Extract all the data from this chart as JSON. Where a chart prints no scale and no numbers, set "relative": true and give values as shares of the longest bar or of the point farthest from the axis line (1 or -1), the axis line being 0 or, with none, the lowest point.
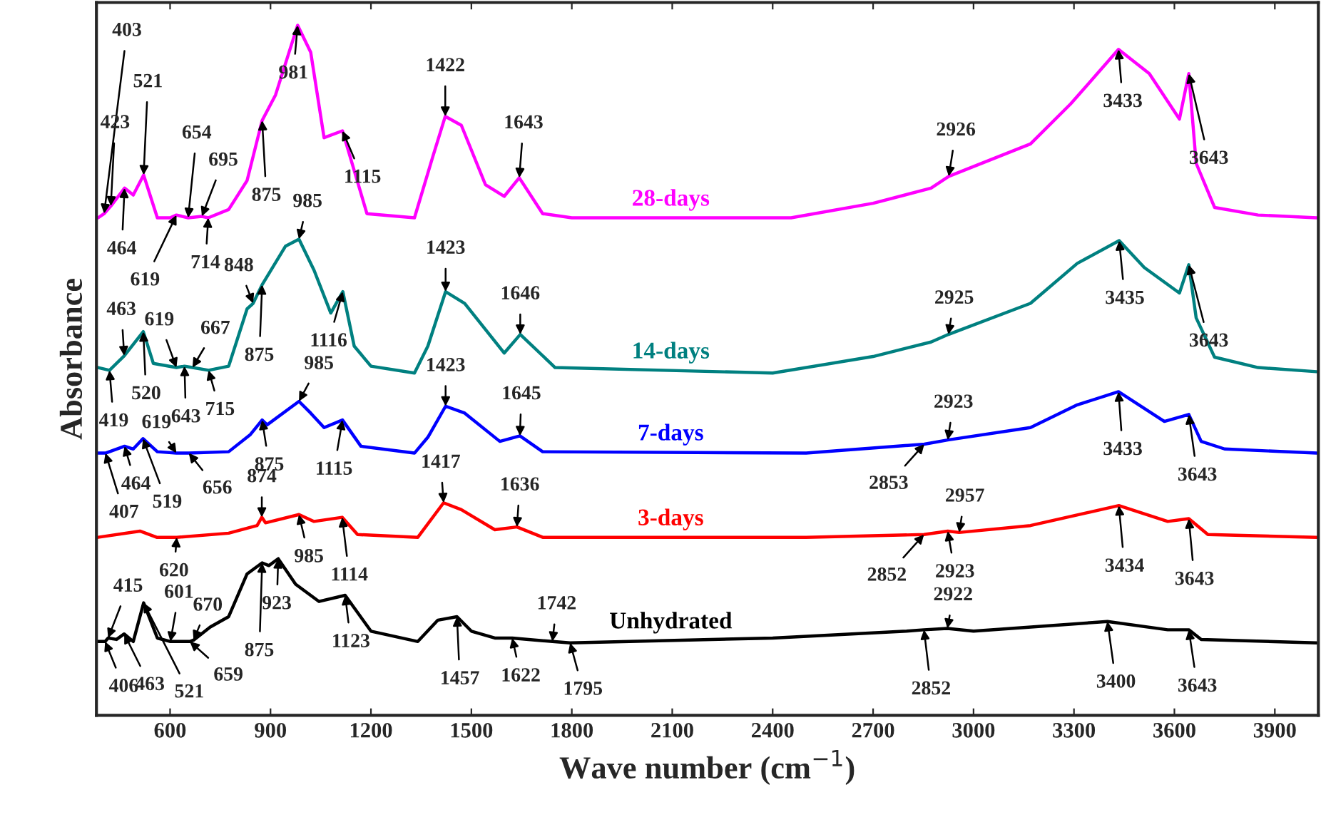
{
  "chart_data": {
    "type": "line",
    "relative": true,
    "xlabel": "Wave number (cm$^{−1}$)",
    "ylabel": "Absorbance",
    "xlim": [
      380,
      4030
    ],
    "xticks": [
      600,
      900,
      1200,
      1500,
      1800,
      2100,
      2400,
      2700,
      3000,
      3300,
      3600,
      3900
    ],
    "tick_labels": "x",
    "series": [
      {
        "name": "28-days",
        "color": "#ff00ff",
        "x": [
          385,
          403,
          423,
          464,
          490,
          521,
          562,
          600,
          619,
          654,
          695,
          714,
          775,
          830,
          875,
          915,
          981,
          1020,
          1060,
          1115,
          1188,
          1330,
          1385,
          1422,
          1470,
          1542,
          1598,
          1643,
          1713,
          1800,
          2200,
          2455,
          2700,
          2873,
          2926,
          3170,
          3290,
          3433,
          3525,
          3615,
          3643,
          3665,
          3720,
          3850,
          4025
        ],
        "values": [
          0.721,
          0.727,
          0.738,
          0.764,
          0.754,
          0.783,
          0.721,
          0.721,
          0.725,
          0.721,
          0.723,
          0.721,
          0.733,
          0.775,
          0.862,
          0.899,
          1.0,
          0.961,
          0.837,
          0.847,
          0.727,
          0.721,
          0.81,
          0.868,
          0.855,
          0.769,
          0.752,
          0.779,
          0.727,
          0.721,
          0.721,
          0.721,
          0.742,
          0.764,
          0.781,
          0.828,
          0.886,
          0.965,
          0.93,
          0.864,
          0.93,
          0.8,
          0.736,
          0.725,
          0.721
        ]
      },
      {
        "name": "14-days",
        "color": "#008080",
        "x": [
          385,
          419,
          463,
          520,
          550,
          619,
          643,
          667,
          715,
          775,
          830,
          848,
          875,
          945,
          985,
          1030,
          1080,
          1116,
          1150,
          1200,
          1330,
          1370,
          1423,
          1480,
          1598,
          1646,
          1750,
          2400,
          2700,
          2873,
          2925,
          3170,
          3310,
          3435,
          3510,
          3615,
          3643,
          3665,
          3720,
          3850,
          4025
        ],
        "values": [
          0.504,
          0.5,
          0.521,
          0.556,
          0.51,
          0.504,
          0.506,
          0.504,
          0.5,
          0.506,
          0.589,
          0.597,
          0.624,
          0.68,
          0.69,
          0.645,
          0.583,
          0.614,
          0.535,
          0.506,
          0.496,
          0.535,
          0.614,
          0.597,
          0.525,
          0.552,
          0.504,
          0.496,
          0.52,
          0.541,
          0.552,
          0.597,
          0.655,
          0.688,
          0.649,
          0.612,
          0.653,
          0.576,
          0.519,
          0.504,
          0.498
        ]
      },
      {
        "name": "7-days",
        "color": "#0000ff",
        "x": [
          385,
          407,
          464,
          490,
          519,
          562,
          619,
          656,
          775,
          840,
          875,
          890,
          985,
          1020,
          1060,
          1115,
          1170,
          1330,
          1370,
          1423,
          1480,
          1585,
          1645,
          1713,
          2500,
          2853,
          2923,
          3170,
          3310,
          3433,
          3570,
          3643,
          3680,
          3750,
          4025
        ],
        "values": [
          0.38,
          0.38,
          0.39,
          0.386,
          0.401,
          0.382,
          0.38,
          0.38,
          0.382,
          0.407,
          0.428,
          0.421,
          0.455,
          0.438,
          0.417,
          0.428,
          0.39,
          0.38,
          0.403,
          0.448,
          0.438,
          0.397,
          0.405,
          0.382,
          0.38,
          0.393,
          0.399,
          0.417,
          0.45,
          0.469,
          0.426,
          0.436,
          0.397,
          0.386,
          0.38
        ]
      },
      {
        "name": "3-days",
        "color": "#ff0000",
        "x": [
          385,
          510,
          560,
          620,
          775,
          860,
          874,
          885,
          985,
          1030,
          1114,
          1160,
          1340,
          1417,
          1470,
          1570,
          1636,
          1713,
          2500,
          2852,
          2923,
          2957,
          3170,
          3434,
          3580,
          3643,
          3700,
          4025
        ],
        "values": [
          0.258,
          0.267,
          0.258,
          0.258,
          0.264,
          0.275,
          0.287,
          0.279,
          0.291,
          0.281,
          0.287,
          0.262,
          0.258,
          0.308,
          0.298,
          0.269,
          0.273,
          0.258,
          0.258,
          0.262,
          0.267,
          0.265,
          0.275,
          0.304,
          0.281,
          0.285,
          0.262,
          0.258
        ]
      },
      {
        "name": "Unhydrated",
        "color": "#000000",
        "x": [
          385,
          406,
          415,
          440,
          463,
          490,
          521,
          562,
          601,
          659,
          670,
          720,
          775,
          830,
          875,
          895,
          923,
          975,
          1045,
          1123,
          1200,
          1340,
          1400,
          1457,
          1500,
          1570,
          1622,
          1742,
          1795,
          2400,
          2800,
          2852,
          2922,
          3000,
          3400,
          3580,
          3643,
          3680,
          4025
        ],
        "values": [
          0.107,
          0.107,
          0.112,
          0.11,
          0.118,
          0.107,
          0.163,
          0.112,
          0.107,
          0.107,
          0.109,
          0.128,
          0.143,
          0.205,
          0.221,
          0.217,
          0.227,
          0.19,
          0.165,
          0.174,
          0.122,
          0.107,
          0.138,
          0.143,
          0.122,
          0.112,
          0.112,
          0.107,
          0.105,
          0.112,
          0.122,
          0.124,
          0.126,
          0.122,
          0.136,
          0.124,
          0.124,
          0.11,
          0.105
        ]
      }
    ],
    "annotations": [
      {
        "text": "403",
        "x": 403,
        "y": 0.727
      },
      {
        "text": "423",
        "x": 423,
        "y": 0.738
      },
      {
        "text": "464",
        "x": 464,
        "y": 0.764
      },
      {
        "text": "521",
        "x": 521,
        "y": 0.783
      },
      {
        "text": "619",
        "x": 619,
        "y": 0.725
      },
      {
        "text": "654",
        "x": 654,
        "y": 0.721
      },
      {
        "text": "695",
        "x": 695,
        "y": 0.723
      },
      {
        "text": "714",
        "x": 714,
        "y": 0.721
      },
      {
        "text": "875",
        "x": 875,
        "y": 0.862
      },
      {
        "text": "981",
        "x": 981,
        "y": 1.0
      },
      {
        "text": "1115",
        "x": 1115,
        "y": 0.847
      },
      {
        "text": "1422",
        "x": 1422,
        "y": 0.868
      },
      {
        "text": "1643",
        "x": 1643,
        "y": 0.779
      },
      {
        "text": "2926",
        "x": 2926,
        "y": 0.781
      },
      {
        "text": "3433",
        "x": 3433,
        "y": 0.965
      },
      {
        "text": "3643",
        "x": 3643,
        "y": 0.93
      },
      {
        "text": "419",
        "x": 419,
        "y": 0.5
      },
      {
        "text": "463",
        "x": 463,
        "y": 0.521
      },
      {
        "text": "520",
        "x": 520,
        "y": 0.556
      },
      {
        "text": "619",
        "x": 619,
        "y": 0.504
      },
      {
        "text": "643",
        "x": 643,
        "y": 0.506
      },
      {
        "text": "667",
        "x": 667,
        "y": 0.504
      },
      {
        "text": "715",
        "x": 715,
        "y": 0.5
      },
      {
        "text": "848",
        "x": 848,
        "y": 0.597
      },
      {
        "text": "875",
        "x": 875,
        "y": 0.624
      },
      {
        "text": "985",
        "x": 985,
        "y": 0.69
      },
      {
        "text": "1116",
        "x": 1116,
        "y": 0.614
      },
      {
        "text": "1423",
        "x": 1423,
        "y": 0.614
      },
      {
        "text": "1646",
        "x": 1646,
        "y": 0.552
      },
      {
        "text": "2925",
        "x": 2925,
        "y": 0.552
      },
      {
        "text": "3435",
        "x": 3435,
        "y": 0.688
      },
      {
        "text": "3643",
        "x": 3643,
        "y": 0.653
      },
      {
        "text": "407",
        "x": 407,
        "y": 0.38
      },
      {
        "text": "464",
        "x": 464,
        "y": 0.39
      },
      {
        "text": "519",
        "x": 519,
        "y": 0.401
      },
      {
        "text": "619",
        "x": 619,
        "y": 0.38
      },
      {
        "text": "656",
        "x": 656,
        "y": 0.38
      },
      {
        "text": "875",
        "x": 875,
        "y": 0.428
      },
      {
        "text": "985",
        "x": 985,
        "y": 0.455
      },
      {
        "text": "1115",
        "x": 1115,
        "y": 0.428
      },
      {
        "text": "1423",
        "x": 1423,
        "y": 0.448
      },
      {
        "text": "1645",
        "x": 1645,
        "y": 0.405
      },
      {
        "text": "2853",
        "x": 2853,
        "y": 0.393
      },
      {
        "text": "2923",
        "x": 2923,
        "y": 0.399
      },
      {
        "text": "3433",
        "x": 3433,
        "y": 0.469
      },
      {
        "text": "3643",
        "x": 3643,
        "y": 0.436
      },
      {
        "text": "620",
        "x": 620,
        "y": 0.258
      },
      {
        "text": "874",
        "x": 874,
        "y": 0.287
      },
      {
        "text": "985",
        "x": 985,
        "y": 0.291
      },
      {
        "text": "1114",
        "x": 1114,
        "y": 0.287
      },
      {
        "text": "1417",
        "x": 1417,
        "y": 0.308
      },
      {
        "text": "1636",
        "x": 1636,
        "y": 0.273
      },
      {
        "text": "2852",
        "x": 2852,
        "y": 0.262
      },
      {
        "text": "2923",
        "x": 2923,
        "y": 0.267
      },
      {
        "text": "2957",
        "x": 2957,
        "y": 0.265
      },
      {
        "text": "3434",
        "x": 3434,
        "y": 0.304
      },
      {
        "text": "3643",
        "x": 3643,
        "y": 0.285
      },
      {
        "text": "406",
        "x": 406,
        "y": 0.107
      },
      {
        "text": "415",
        "x": 415,
        "y": 0.112
      },
      {
        "text": "463",
        "x": 463,
        "y": 0.118
      },
      {
        "text": "521",
        "x": 521,
        "y": 0.163
      },
      {
        "text": "601",
        "x": 601,
        "y": 0.107
      },
      {
        "text": "659",
        "x": 659,
        "y": 0.107
      },
      {
        "text": "670",
        "x": 670,
        "y": 0.109
      },
      {
        "text": "875",
        "x": 875,
        "y": 0.221
      },
      {
        "text": "923",
        "x": 923,
        "y": 0.227
      },
      {
        "text": "1123",
        "x": 1123,
        "y": 0.174
      },
      {
        "text": "1457",
        "x": 1457,
        "y": 0.143
      },
      {
        "text": "1622",
        "x": 1622,
        "y": 0.112
      },
      {
        "text": "1742",
        "x": 1742,
        "y": 0.107
      },
      {
        "text": "1795",
        "x": 1795,
        "y": 0.105
      },
      {
        "text": "2852",
        "x": 2852,
        "y": 0.124
      },
      {
        "text": "2922",
        "x": 2922,
        "y": 0.126
      },
      {
        "text": "3400",
        "x": 3400,
        "y": 0.136
      },
      {
        "text": "3643",
        "x": 3643,
        "y": 0.124
      }
    ]
  }
}
